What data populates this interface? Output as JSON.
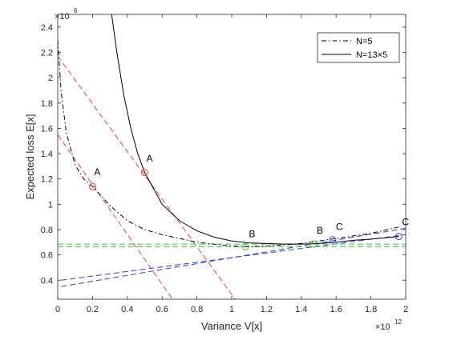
{
  "chart_data": {
    "type": "line",
    "xlabel": "Variance V[x]",
    "ylabel": "Expected loss E[x]",
    "x_exponent_label": "×10",
    "x_exponent": "12",
    "y_exponent_label": "×10",
    "y_exponent": "6",
    "xlim": [
      0,
      2
    ],
    "ylim": [
      0.25,
      2.5
    ],
    "xticks": [
      0,
      0.2,
      0.4,
      0.6,
      0.8,
      1,
      1.2,
      1.4,
      1.6,
      1.8,
      2
    ],
    "xtick_labels": [
      "0",
      "0.2",
      "0.4",
      "0.6",
      "0.8",
      "1",
      "1.2",
      "1.4",
      "1.6",
      "1.8",
      "2"
    ],
    "yticks": [
      0.4,
      0.6,
      0.8,
      1,
      1.2,
      1.4,
      1.6,
      1.8,
      2,
      2.2,
      2.4
    ],
    "ytick_labels": [
      "0.4",
      "0.6",
      "0.8",
      "1",
      "1.2",
      "1.4",
      "1.6",
      "1.8",
      "2",
      "2.2",
      "2.4"
    ],
    "grid": false,
    "legend_position": "top-right",
    "series": [
      {
        "name": "N=5",
        "style": "dashdot",
        "color": "#000000",
        "x": [
          0.0,
          0.02,
          0.05,
          0.1,
          0.15,
          0.2,
          0.3,
          0.4,
          0.5,
          0.6,
          0.8,
          1.0,
          1.1,
          1.2,
          1.4,
          1.6,
          1.8,
          1.96
        ],
        "y": [
          2.3,
          1.88,
          1.56,
          1.31,
          1.2,
          1.14,
          0.99,
          0.87,
          0.8,
          0.76,
          0.7,
          0.67,
          0.665,
          0.67,
          0.69,
          0.73,
          0.77,
          0.82
        ]
      },
      {
        "name": "N=13×5",
        "style": "solid",
        "color": "#000000",
        "x": [
          0.31,
          0.34,
          0.38,
          0.42,
          0.46,
          0.5,
          0.6,
          0.7,
          0.8,
          0.9,
          1.0,
          1.1,
          1.2,
          1.3,
          1.4,
          1.5,
          1.6,
          1.7,
          1.8,
          1.96
        ],
        "y": [
          2.5,
          2.2,
          1.86,
          1.6,
          1.4,
          1.25,
          1.0,
          0.87,
          0.79,
          0.74,
          0.71,
          0.695,
          0.69,
          0.685,
          0.685,
          0.69,
          0.7,
          0.715,
          0.725,
          0.745
        ]
      }
    ],
    "tangent_lines": [
      {
        "color": "#e8413a",
        "x1": 0.0,
        "y1": 1.55,
        "x2": 0.66,
        "y2": 0.25
      },
      {
        "color": "#e8413a",
        "x1": 0.0,
        "y1": 2.17,
        "x2": 1.02,
        "y2": 0.25
      },
      {
        "color": "#3a3ad6",
        "x1": 0.02,
        "y1": 0.35,
        "x2": 2.0,
        "y2": 0.81
      },
      {
        "color": "#3a3ad6",
        "x1": 0.02,
        "y1": 0.4,
        "x2": 2.0,
        "y2": 0.76
      },
      {
        "color": "#3ac63a",
        "x1": 0.0,
        "y1": 0.665,
        "x2": 2.0,
        "y2": 0.665
      },
      {
        "color": "#3ac63a",
        "x1": 0.0,
        "y1": 0.685,
        "x2": 2.0,
        "y2": 0.685
      }
    ],
    "points": [
      {
        "label": "A",
        "x": 0.2,
        "y": 1.14,
        "color": "#e8413a",
        "label_dx": 2,
        "label_dy": -14
      },
      {
        "label": "A",
        "x": 0.5,
        "y": 1.25,
        "color": "#e8413a",
        "label_dx": 2,
        "label_dy": -14
      },
      {
        "label": "B",
        "x": 1.08,
        "y": 0.665,
        "color": "#3ac63a",
        "label_dx": 4,
        "label_dy": -12
      },
      {
        "label": "B",
        "x": 1.47,
        "y": 0.685,
        "color": "#3ac63a",
        "label_dx": 4,
        "label_dy": -13
      },
      {
        "label": "C",
        "x": 1.58,
        "y": 0.72,
        "color": "#3a3ad6",
        "label_dx": 4,
        "label_dy": -12
      },
      {
        "label": "C",
        "x": 1.96,
        "y": 0.745,
        "color": "#3a3ad6",
        "label_dx": 4,
        "label_dy": -14
      }
    ]
  }
}
